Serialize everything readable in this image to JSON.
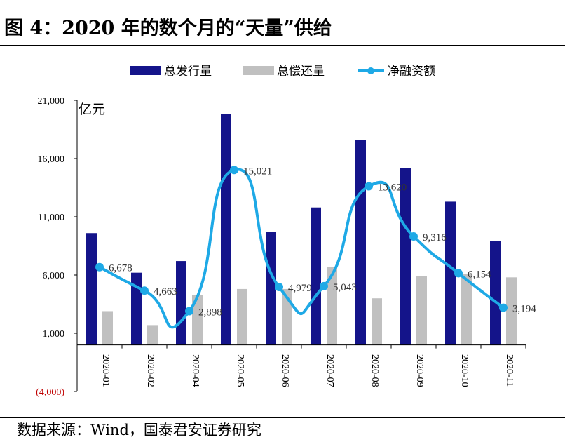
{
  "header": {
    "title": "图 4：2020 年的数个月的“天量”供给"
  },
  "footer": {
    "source": "数据来源：Wind，国泰君安证券研究"
  },
  "colors": {
    "issuance": "#14148a",
    "repayment": "#c0c0c0",
    "net": "#1ea9e6",
    "negative_label": "#c00000"
  },
  "chart_data": {
    "type": "bar",
    "unit_label": "亿元",
    "categories": [
      "2020-01",
      "2020-02",
      "2020-04",
      "2020-05",
      "2020-06",
      "2020-07",
      "2020-08",
      "2020-09",
      "2020-10",
      "2020-11"
    ],
    "series": [
      {
        "name": "总发行量",
        "type": "bar",
        "values": [
          9600,
          6200,
          7200,
          19800,
          9700,
          11800,
          17600,
          15200,
          12300,
          8900
        ]
      },
      {
        "name": "总偿还量",
        "type": "bar",
        "values": [
          2900,
          1700,
          4300,
          4800,
          4800,
          6700,
          4000,
          5900,
          6100,
          5800
        ]
      },
      {
        "name": "净融资额",
        "type": "line",
        "smooth": true,
        "values": [
          6678,
          4663,
          2898,
          15021,
          4979,
          5043,
          13620,
          9316,
          6154,
          3194
        ],
        "labels": [
          "6,678",
          "4,663",
          "2,898",
          "15,021",
          "4,979",
          "5,043",
          "13,620",
          "9,316",
          "6,154",
          "3,194"
        ]
      }
    ],
    "y_ticks": [
      -4000,
      1000,
      6000,
      11000,
      16000,
      21000
    ],
    "y_tick_labels": [
      "(4,000)",
      "1,000",
      "6,000",
      "11,000",
      "16,000",
      "21,000"
    ],
    "ylim": [
      -4000,
      21000
    ],
    "grid": false,
    "legend_position": "top"
  }
}
